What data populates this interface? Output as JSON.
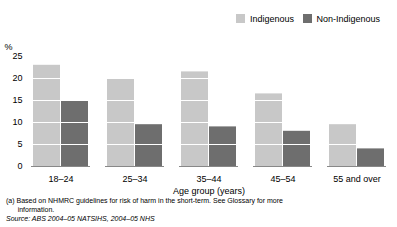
{
  "chart_data": {
    "type": "bar",
    "categories": [
      "18–24",
      "25–34",
      "35–44",
      "45–54",
      "55 and over"
    ],
    "series": [
      {
        "name": "Indigenous",
        "color": "#c8c8c8",
        "values": [
          23.0,
          20.0,
          21.5,
          16.5,
          9.5
        ]
      },
      {
        "name": "Non-Indigenous",
        "color": "#6e6e6e",
        "values": [
          15.0,
          9.5,
          9.0,
          8.0,
          4.0
        ]
      }
    ],
    "xlabel": "Age group (years)",
    "ylabel": "%",
    "ylim": [
      0,
      25
    ],
    "yticks": [
      0,
      5,
      10,
      15,
      20,
      25
    ],
    "grid": true,
    "legend": "top-right",
    "annotations": [
      "(a) Based on NHMRC guidelines for risk of harm in the short-term. See Glossary for more",
      "      information.",
      "Source: ABS 2004–05 NATSIHS, 2004–05 NHS"
    ]
  }
}
